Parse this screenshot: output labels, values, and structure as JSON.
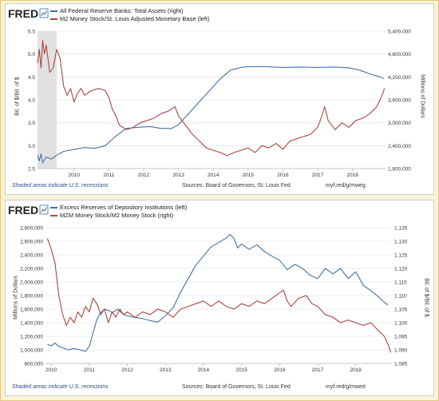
{
  "brand": "FRED",
  "colors": {
    "blue": "#4572a7",
    "red": "#aa4643",
    "recession": "#e1e1e1",
    "grid": "#e6e6e6",
    "page_bg": "#fbf3d8",
    "frame": "#e4c97a"
  },
  "chart_data": [
    {
      "type": "line",
      "legend": [
        "All Federal Reserve Banks: Total Assets (right)",
        "M2 Money Stock/St. Louis Adjusted Monetary Base (left)"
      ],
      "ylabel_left": "Bil. of $/Bil. of $",
      "ylabel_right": "Millions of Dollars",
      "x_ticks": [
        "2010",
        "2011",
        "2012",
        "2013",
        "2014",
        "2015",
        "2016",
        "2017",
        "2018"
      ],
      "left_ticks": [
        "2.5",
        "3.0",
        "3.5",
        "4.0",
        "4.5",
        "5.0",
        "5.5"
      ],
      "right_ticks": [
        "1,800,000",
        "2,400,000",
        "3,000,000",
        "3,600,000",
        "4,200,000",
        "4,800,000",
        "5,400,000"
      ],
      "xlim": [
        2008.95,
        2018.95
      ],
      "ylim_left": [
        2.5,
        5.5
      ],
      "ylim_right": [
        1800000,
        5400000
      ],
      "recession": [
        2008.95,
        2009.5
      ],
      "series": [
        {
          "name": "All Federal Reserve Banks: Total Assets (right)",
          "axis": "right",
          "points": [
            [
              2008.95,
              2150000
            ],
            [
              2009.0,
              2000000
            ],
            [
              2009.05,
              2180000
            ],
            [
              2009.1,
              1950000
            ],
            [
              2009.2,
              2100000
            ],
            [
              2009.35,
              2050000
            ],
            [
              2009.5,
              2150000
            ],
            [
              2009.7,
              2250000
            ],
            [
              2010.0,
              2300000
            ],
            [
              2010.3,
              2350000
            ],
            [
              2010.6,
              2330000
            ],
            [
              2010.9,
              2400000
            ],
            [
              2011.2,
              2650000
            ],
            [
              2011.5,
              2850000
            ],
            [
              2011.8,
              2880000
            ],
            [
              2012.2,
              2900000
            ],
            [
              2012.5,
              2850000
            ],
            [
              2012.8,
              2850000
            ],
            [
              2013.0,
              2950000
            ],
            [
              2013.3,
              3250000
            ],
            [
              2013.6,
              3550000
            ],
            [
              2013.9,
              3850000
            ],
            [
              2014.2,
              4150000
            ],
            [
              2014.5,
              4380000
            ],
            [
              2014.8,
              4450000
            ],
            [
              2015.0,
              4470000
            ],
            [
              2015.5,
              4470000
            ],
            [
              2016.0,
              4450000
            ],
            [
              2016.5,
              4460000
            ],
            [
              2017.0,
              4450000
            ],
            [
              2017.5,
              4460000
            ],
            [
              2017.9,
              4440000
            ],
            [
              2018.2,
              4380000
            ],
            [
              2018.5,
              4280000
            ],
            [
              2018.8,
              4200000
            ],
            [
              2018.9,
              4150000
            ]
          ]
        },
        {
          "name": "M2 Money Stock/St. Louis Adjusted Monetary Base (left)",
          "axis": "left",
          "points": [
            [
              2008.95,
              4.8
            ],
            [
              2009.0,
              5.1
            ],
            [
              2009.05,
              4.7
            ],
            [
              2009.1,
              5.3
            ],
            [
              2009.15,
              5.0
            ],
            [
              2009.2,
              5.2
            ],
            [
              2009.3,
              4.6
            ],
            [
              2009.4,
              4.7
            ],
            [
              2009.5,
              5.1
            ],
            [
              2009.6,
              4.9
            ],
            [
              2009.7,
              4.3
            ],
            [
              2009.8,
              4.1
            ],
            [
              2009.9,
              4.25
            ],
            [
              2010.0,
              3.95
            ],
            [
              2010.1,
              4.15
            ],
            [
              2010.2,
              4.25
            ],
            [
              2010.3,
              4.1
            ],
            [
              2010.5,
              4.2
            ],
            [
              2010.7,
              4.25
            ],
            [
              2010.9,
              4.2
            ],
            [
              2011.0,
              4.05
            ],
            [
              2011.1,
              3.8
            ],
            [
              2011.2,
              3.65
            ],
            [
              2011.3,
              3.45
            ],
            [
              2011.5,
              3.35
            ],
            [
              2011.7,
              3.4
            ],
            [
              2011.9,
              3.5
            ],
            [
              2012.1,
              3.55
            ],
            [
              2012.3,
              3.6
            ],
            [
              2012.5,
              3.7
            ],
            [
              2012.7,
              3.75
            ],
            [
              2012.9,
              3.85
            ],
            [
              2013.0,
              3.65
            ],
            [
              2013.2,
              3.45
            ],
            [
              2013.4,
              3.25
            ],
            [
              2013.6,
              3.1
            ],
            [
              2013.8,
              2.95
            ],
            [
              2014.0,
              2.9
            ],
            [
              2014.2,
              2.85
            ],
            [
              2014.4,
              2.78
            ],
            [
              2014.6,
              2.85
            ],
            [
              2014.8,
              2.9
            ],
            [
              2015.0,
              2.95
            ],
            [
              2015.2,
              2.85
            ],
            [
              2015.4,
              3.0
            ],
            [
              2015.6,
              2.95
            ],
            [
              2015.8,
              3.05
            ],
            [
              2016.0,
              2.92
            ],
            [
              2016.2,
              3.1
            ],
            [
              2016.4,
              3.15
            ],
            [
              2016.6,
              3.2
            ],
            [
              2016.8,
              3.25
            ],
            [
              2017.0,
              3.4
            ],
            [
              2017.1,
              3.6
            ],
            [
              2017.2,
              3.85
            ],
            [
              2017.3,
              3.55
            ],
            [
              2017.5,
              3.35
            ],
            [
              2017.7,
              3.5
            ],
            [
              2017.9,
              3.4
            ],
            [
              2018.1,
              3.55
            ],
            [
              2018.3,
              3.6
            ],
            [
              2018.5,
              3.7
            ],
            [
              2018.7,
              3.85
            ],
            [
              2018.85,
              4.1
            ],
            [
              2018.92,
              4.25
            ]
          ]
        }
      ]
    },
    {
      "type": "line",
      "legend": [
        "Excess Reserves of Depository Institutions (left)",
        "MZM Money Stock/M2 Money Stock (right)"
      ],
      "ylabel_left": "Millions of Dollars",
      "ylabel_right": "Bil. of $/Bil. of $",
      "x_ticks": [
        "2010",
        "2011",
        "2012",
        "2013",
        "2014",
        "2015",
        "2016",
        "2017",
        "2018"
      ],
      "left_ticks": [
        "800,000",
        "1,000,000",
        "1,200,000",
        "1,400,000",
        "1,600,000",
        "1,800,000",
        "2,000,000",
        "2,200,000",
        "2,400,000",
        "2,600,000",
        "2,800,000"
      ],
      "right_ticks": [
        "1.085",
        "1.090",
        "1.095",
        "1.100",
        "1.105",
        "1.110",
        "1.115",
        "1.120",
        "1.125",
        "1.130",
        "1.135"
      ],
      "xlim": [
        2009.85,
        2018.95
      ],
      "ylim_left": [
        800000,
        2800000
      ],
      "ylim_right": [
        1.085,
        1.135
      ],
      "series": [
        {
          "name": "Excess Reserves of Depository Institutions (left)",
          "axis": "left",
          "points": [
            [
              2009.9,
              1080000
            ],
            [
              2010.0,
              1060000
            ],
            [
              2010.1,
              1100000
            ],
            [
              2010.2,
              1050000
            ],
            [
              2010.3,
              1030000
            ],
            [
              2010.45,
              1000000
            ],
            [
              2010.6,
              1020000
            ],
            [
              2010.75,
              1000000
            ],
            [
              2010.9,
              980000
            ],
            [
              2011.0,
              1050000
            ],
            [
              2011.1,
              1250000
            ],
            [
              2011.2,
              1450000
            ],
            [
              2011.3,
              1550000
            ],
            [
              2011.4,
              1600000
            ],
            [
              2011.5,
              1580000
            ],
            [
              2011.6,
              1550000
            ],
            [
              2011.75,
              1600000
            ],
            [
              2011.9,
              1520000
            ],
            [
              2012.0,
              1500000
            ],
            [
              2012.2,
              1480000
            ],
            [
              2012.4,
              1460000
            ],
            [
              2012.6,
              1430000
            ],
            [
              2012.8,
              1410000
            ],
            [
              2013.0,
              1500000
            ],
            [
              2013.2,
              1620000
            ],
            [
              2013.4,
              1850000
            ],
            [
              2013.6,
              2050000
            ],
            [
              2013.8,
              2250000
            ],
            [
              2014.0,
              2380000
            ],
            [
              2014.2,
              2520000
            ],
            [
              2014.4,
              2580000
            ],
            [
              2014.6,
              2650000
            ],
            [
              2014.7,
              2700000
            ],
            [
              2014.8,
              2640000
            ],
            [
              2014.9,
              2500000
            ],
            [
              2015.0,
              2560000
            ],
            [
              2015.2,
              2480000
            ],
            [
              2015.4,
              2550000
            ],
            [
              2015.6,
              2450000
            ],
            [
              2015.8,
              2380000
            ],
            [
              2016.0,
              2320000
            ],
            [
              2016.2,
              2180000
            ],
            [
              2016.4,
              2260000
            ],
            [
              2016.6,
              2200000
            ],
            [
              2016.8,
              2100000
            ],
            [
              2017.0,
              2050000
            ],
            [
              2017.2,
              2200000
            ],
            [
              2017.4,
              2120000
            ],
            [
              2017.6,
              2200000
            ],
            [
              2017.8,
              2050000
            ],
            [
              2018.0,
              2150000
            ],
            [
              2018.2,
              1950000
            ],
            [
              2018.4,
              1870000
            ],
            [
              2018.6,
              1780000
            ],
            [
              2018.75,
              1700000
            ],
            [
              2018.85,
              1660000
            ]
          ]
        },
        {
          "name": "MZM Money Stock/M2 Money Stock (right)",
          "axis": "right",
          "points": [
            [
              2009.9,
              1.131
            ],
            [
              2010.0,
              1.127
            ],
            [
              2010.1,
              1.122
            ],
            [
              2010.2,
              1.11
            ],
            [
              2010.3,
              1.103
            ],
            [
              2010.4,
              1.099
            ],
            [
              2010.5,
              1.102
            ],
            [
              2010.6,
              1.1
            ],
            [
              2010.7,
              1.104
            ],
            [
              2010.8,
              1.102
            ],
            [
              2010.9,
              1.106
            ],
            [
              2011.0,
              1.104
            ],
            [
              2011.1,
              1.109
            ],
            [
              2011.2,
              1.107
            ],
            [
              2011.3,
              1.103
            ],
            [
              2011.4,
              1.105
            ],
            [
              2011.5,
              1.1
            ],
            [
              2011.6,
              1.104
            ],
            [
              2011.7,
              1.102
            ],
            [
              2011.8,
              1.105
            ],
            [
              2011.9,
              1.103
            ],
            [
              2012.0,
              1.104
            ],
            [
              2012.2,
              1.102
            ],
            [
              2012.4,
              1.104
            ],
            [
              2012.6,
              1.103
            ],
            [
              2012.8,
              1.105
            ],
            [
              2013.0,
              1.104
            ],
            [
              2013.2,
              1.102
            ],
            [
              2013.4,
              1.105
            ],
            [
              2013.6,
              1.106
            ],
            [
              2013.8,
              1.107
            ],
            [
              2014.0,
              1.108
            ],
            [
              2014.2,
              1.106
            ],
            [
              2014.4,
              1.108
            ],
            [
              2014.6,
              1.106
            ],
            [
              2014.8,
              1.105
            ],
            [
              2015.0,
              1.107
            ],
            [
              2015.2,
              1.106
            ],
            [
              2015.4,
              1.108
            ],
            [
              2015.6,
              1.107
            ],
            [
              2015.8,
              1.109
            ],
            [
              2016.0,
              1.111
            ],
            [
              2016.1,
              1.112
            ],
            [
              2016.2,
              1.108
            ],
            [
              2016.3,
              1.106
            ],
            [
              2016.5,
              1.109
            ],
            [
              2016.7,
              1.11
            ],
            [
              2016.85,
              1.107
            ],
            [
              2017.0,
              1.106
            ],
            [
              2017.2,
              1.103
            ],
            [
              2017.4,
              1.102
            ],
            [
              2017.6,
              1.1
            ],
            [
              2017.8,
              1.101
            ],
            [
              2018.0,
              1.1
            ],
            [
              2018.2,
              1.099
            ],
            [
              2018.4,
              1.1
            ],
            [
              2018.6,
              1.097
            ],
            [
              2018.75,
              1.095
            ],
            [
              2018.85,
              1.092
            ],
            [
              2018.92,
              1.089
            ]
          ]
        }
      ]
    }
  ],
  "panels": [
    {
      "footer_left": "Shaded areas indicate U.S. recessions",
      "footer_mid": "Sources: Board of Governors, St. Louis Fed",
      "footer_right": "myf.red/g/mweg"
    },
    {
      "footer_left": "Shaded areas indicate U.S. recessions",
      "footer_mid": "Sources: Board of Governors, St. Louis Fed",
      "footer_right": "myf.red/g/mwed"
    }
  ]
}
